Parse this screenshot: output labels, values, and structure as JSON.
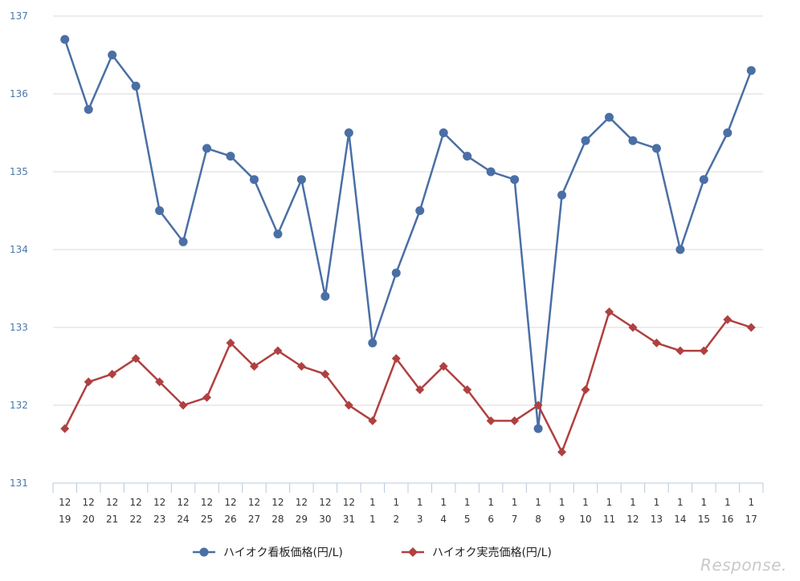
{
  "chart_data": {
    "type": "line",
    "categories": [
      [
        "12",
        "19"
      ],
      [
        "12",
        "20"
      ],
      [
        "12",
        "21"
      ],
      [
        "12",
        "22"
      ],
      [
        "12",
        "23"
      ],
      [
        "12",
        "24"
      ],
      [
        "12",
        "25"
      ],
      [
        "12",
        "26"
      ],
      [
        "12",
        "27"
      ],
      [
        "12",
        "28"
      ],
      [
        "12",
        "29"
      ],
      [
        "12",
        "30"
      ],
      [
        "12",
        "31"
      ],
      [
        "1",
        "1"
      ],
      [
        "1",
        "2"
      ],
      [
        "1",
        "3"
      ],
      [
        "1",
        "4"
      ],
      [
        "1",
        "5"
      ],
      [
        "1",
        "6"
      ],
      [
        "1",
        "7"
      ],
      [
        "1",
        "8"
      ],
      [
        "1",
        "9"
      ],
      [
        "1",
        "10"
      ],
      [
        "1",
        "11"
      ],
      [
        "1",
        "12"
      ],
      [
        "1",
        "13"
      ],
      [
        "1",
        "14"
      ],
      [
        "1",
        "15"
      ],
      [
        "1",
        "16"
      ],
      [
        "1",
        "17"
      ]
    ],
    "series": [
      {
        "name": "ハイオク看板価格(円/L)",
        "color": "#4a6fa5",
        "marker": "circle",
        "values": [
          136.7,
          135.8,
          136.5,
          136.1,
          134.5,
          134.1,
          135.3,
          135.2,
          134.9,
          134.2,
          134.9,
          133.4,
          135.5,
          132.8,
          133.7,
          134.5,
          135.5,
          135.2,
          135.0,
          134.9,
          131.7,
          134.7,
          135.4,
          135.7,
          135.4,
          135.3,
          134.0,
          134.9,
          135.5,
          136.3
        ]
      },
      {
        "name": "ハイオク実売価格(円/L)",
        "color": "#b04040",
        "marker": "diamond",
        "values": [
          131.7,
          132.3,
          132.4,
          132.6,
          132.3,
          132.0,
          132.1,
          132.8,
          132.5,
          132.7,
          132.5,
          132.4,
          132.0,
          131.8,
          132.6,
          132.2,
          132.5,
          132.2,
          131.8,
          131.8,
          132.0,
          131.4,
          132.2,
          133.2,
          133.0,
          132.8,
          132.7,
          132.7,
          133.1,
          133.0
        ]
      }
    ],
    "yticks": [
      131,
      132,
      133,
      134,
      135,
      136,
      137
    ],
    "ylim": [
      131,
      137
    ],
    "grid": true,
    "legend_position": "bottom"
  },
  "watermark": "Response."
}
